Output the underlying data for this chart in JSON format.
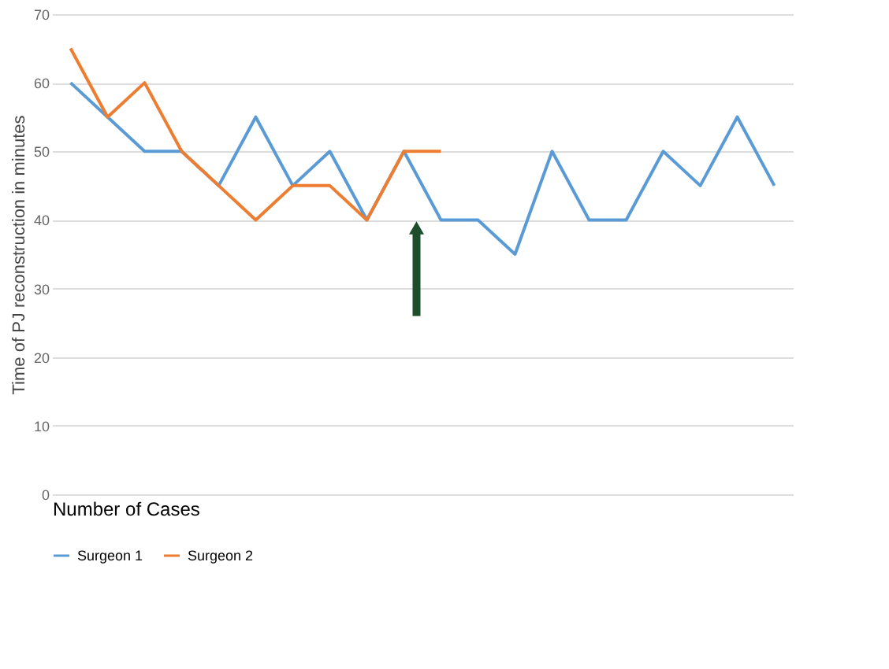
{
  "chart_data": {
    "type": "line",
    "xlabel": "Number of Cases",
    "ylabel": "Time of PJ reconstruction in minutes",
    "categories": [
      null,
      null,
      null,
      null,
      null,
      null,
      null,
      null,
      null,
      null,
      null,
      null,
      null,
      null,
      null,
      null,
      null,
      null,
      null,
      null
    ],
    "series": [
      {
        "name": "Surgeon 1",
        "color": "#5b9bd5",
        "values": [
          60,
          55,
          50,
          50,
          45,
          55,
          45,
          50,
          40,
          50,
          40,
          40,
          35,
          50,
          40,
          40,
          50,
          45,
          55,
          45
        ]
      },
      {
        "name": "Surgeon 2",
        "color": "#ed7d31",
        "values": [
          65,
          55,
          60,
          50,
          45,
          40,
          45,
          45,
          40,
          50,
          50,
          null,
          null,
          null,
          null,
          null,
          null,
          null,
          null,
          null
        ]
      }
    ],
    "ylim": [
      0,
      70
    ],
    "yticks": [
      0,
      10,
      20,
      30,
      40,
      50,
      60,
      70
    ],
    "grid": "y",
    "legend": "bottom",
    "tick_labels": "y",
    "marker": "none",
    "line_style": "solid"
  }
}
